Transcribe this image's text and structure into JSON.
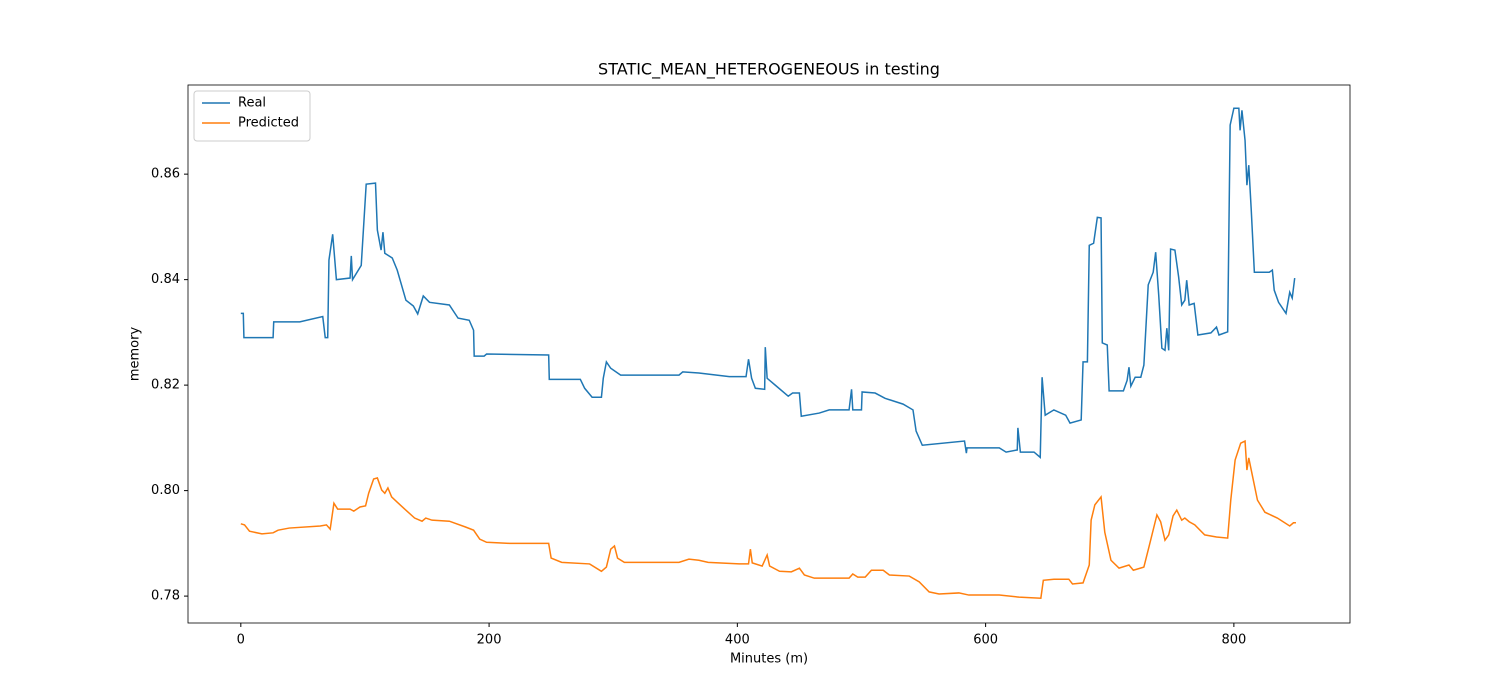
{
  "chart_data": {
    "type": "line",
    "title": "STATIC_MEAN_HETEROGENEOUS in testing",
    "x_label": "Minutes (m)",
    "y_label": "memory",
    "xlim": [
      -42.55,
      893.55
    ],
    "ylim": [
      0.7749,
      0.8769
    ],
    "xticks": [
      0,
      200,
      400,
      600,
      800
    ],
    "yticks": [
      0.78,
      {
        "value": 0.8,
        "label": "0.80"
      },
      0.82,
      0.84,
      0.86
    ],
    "legend": "upper left",
    "series": [
      {
        "name": "Real",
        "color": "#1f77b4",
        "x": [
          0,
          2,
          2.5,
          26,
          26.5,
          47.5,
          66,
          68,
          70,
          71,
          74,
          77,
          88,
          89,
          90,
          97,
          101,
          108.5,
          110,
          113,
          114.5,
          116,
          122,
          126,
          133,
          139,
          142.5,
          147,
          152,
          168,
          175,
          184,
          187.5,
          188,
          196,
          198,
          248,
          248.5,
          273.5,
          277,
          283,
          290.5,
          292,
          294.5,
          298,
          306,
          353,
          356,
          369,
          393.5,
          407,
          409,
          411.5,
          414.5,
          422,
          422.5,
          424,
          430.5,
          441,
          444.5,
          450,
          451.5,
          466,
          474,
          490,
          492,
          493,
          500,
          500.5,
          511,
          519,
          533.5,
          541.5,
          544,
          549,
          583,
          584.5,
          585,
          611,
          616.5,
          625.5,
          626,
          628,
          639,
          644,
          645.5,
          648,
          655,
          664.5,
          668,
          677,
          678.5,
          682,
          683.5,
          687,
          690,
          693,
          694,
          698,
          699.5,
          711,
          714,
          715.5,
          717,
          720.5,
          725,
          727.5,
          731,
          735,
          737,
          739.5,
          742,
          744.5,
          746,
          747.5,
          749,
          752.5,
          755.5,
          758,
          760.5,
          762,
          764,
          768,
          771,
          781.5,
          786,
          788,
          795,
          797,
          800,
          804,
          805,
          806.5,
          809,
          810.5,
          812,
          814,
          816.5,
          828.5,
          831,
          832.5,
          836,
          842,
          845,
          847,
          849
        ],
        "values": [
          0.8336,
          0.8336,
          0.829,
          0.829,
          0.832,
          0.832,
          0.833,
          0.829,
          0.829,
          0.8437,
          0.8486,
          0.84,
          0.8403,
          0.8445,
          0.84,
          0.8427,
          0.8581,
          0.8583,
          0.8494,
          0.8456,
          0.849,
          0.845,
          0.8441,
          0.8418,
          0.8361,
          0.835,
          0.8335,
          0.8369,
          0.8357,
          0.8352,
          0.8327,
          0.8323,
          0.8304,
          0.8255,
          0.8255,
          0.8259,
          0.8257,
          0.8211,
          0.8211,
          0.8194,
          0.8177,
          0.8177,
          0.8213,
          0.8244,
          0.8232,
          0.8219,
          0.8219,
          0.8225,
          0.8223,
          0.8216,
          0.8216,
          0.8249,
          0.8213,
          0.8194,
          0.8192,
          0.8272,
          0.8213,
          0.82,
          0.8179,
          0.8185,
          0.8185,
          0.8141,
          0.8147,
          0.8153,
          0.8153,
          0.8192,
          0.8153,
          0.8153,
          0.8187,
          0.8185,
          0.8175,
          0.8164,
          0.8153,
          0.8113,
          0.8086,
          0.8094,
          0.8071,
          0.8081,
          0.8081,
          0.8073,
          0.8077,
          0.8119,
          0.8073,
          0.8073,
          0.8063,
          0.8215,
          0.8143,
          0.8153,
          0.8143,
          0.8128,
          0.8134,
          0.8244,
          0.8244,
          0.8465,
          0.8469,
          0.8518,
          0.8517,
          0.828,
          0.8276,
          0.8189,
          0.8189,
          0.8209,
          0.8234,
          0.8198,
          0.8215,
          0.8215,
          0.8238,
          0.839,
          0.8414,
          0.8452,
          0.8369,
          0.827,
          0.8266,
          0.8308,
          0.8266,
          0.8458,
          0.8456,
          0.8405,
          0.8352,
          0.8361,
          0.8399,
          0.8352,
          0.8355,
          0.8295,
          0.8299,
          0.831,
          0.8295,
          0.8301,
          0.8693,
          0.8725,
          0.8725,
          0.8683,
          0.8721,
          0.8664,
          0.8579,
          0.8617,
          0.8532,
          0.8414,
          0.8414,
          0.8418,
          0.838,
          0.8357,
          0.8336,
          0.8376,
          0.8365,
          0.8403
        ]
      },
      {
        "name": "Predicted",
        "color": "#ff7f0e",
        "x": [
          0,
          3,
          7,
          17,
          26,
          30,
          39,
          64,
          69,
          72,
          75,
          78,
          88,
          91,
          96,
          100.5,
          103,
          107,
          110,
          113.5,
          116,
          118.5,
          121.5,
          126,
          132,
          140,
          146,
          149,
          154,
          168,
          181,
          187.5,
          192.5,
          198,
          216.5,
          248,
          250,
          258.5,
          281,
          290.5,
          294.5,
          298,
          301,
          303.5,
          309,
          353,
          361,
          369,
          376.5,
          401.5,
          409,
          410.5,
          412,
          420,
          424,
          426,
          434,
          443.5,
          450,
          454,
          462,
          490,
          493,
          497,
          503,
          508,
          517.5,
          522.5,
          538.5,
          546.5,
          554.5,
          562.5,
          578.5,
          586.5,
          611,
          627,
          644.5,
          646.5,
          655,
          667,
          670,
          678.5,
          683.5,
          685,
          688,
          693,
          696,
          701,
          707.5,
          715.5,
          719,
          727.5,
          732,
          738,
          741,
          744.5,
          747.5,
          751,
          754,
          758,
          760.5,
          764,
          768.5,
          776.5,
          786,
          795,
          797.5,
          801,
          805.5,
          809,
          810.5,
          812,
          814,
          819,
          825,
          835,
          845,
          848,
          850
        ],
        "values": [
          0.7937,
          0.7935,
          0.7923,
          0.7918,
          0.792,
          0.7925,
          0.7929,
          0.7933,
          0.7935,
          0.7927,
          0.7976,
          0.7965,
          0.7965,
          0.7961,
          0.7969,
          0.7971,
          0.7995,
          0.8022,
          0.8024,
          0.8001,
          0.7995,
          0.8005,
          0.7988,
          0.7978,
          0.7965,
          0.7948,
          0.7942,
          0.7948,
          0.7944,
          0.7942,
          0.7931,
          0.7925,
          0.7908,
          0.7902,
          0.79,
          0.79,
          0.7872,
          0.7864,
          0.7861,
          0.7847,
          0.7855,
          0.7889,
          0.7895,
          0.7872,
          0.7864,
          0.7864,
          0.787,
          0.7868,
          0.7864,
          0.7861,
          0.7861,
          0.7889,
          0.7863,
          0.7857,
          0.7878,
          0.7857,
          0.7847,
          0.7846,
          0.7853,
          0.784,
          0.7834,
          0.7834,
          0.7842,
          0.7836,
          0.7836,
          0.7849,
          0.7849,
          0.784,
          0.7838,
          0.7827,
          0.7808,
          0.7804,
          0.7806,
          0.7802,
          0.7802,
          0.7798,
          0.7796,
          0.783,
          0.7832,
          0.7832,
          0.7823,
          0.7825,
          0.7859,
          0.7944,
          0.7973,
          0.7988,
          0.7921,
          0.7868,
          0.7853,
          0.7859,
          0.7849,
          0.7855,
          0.7897,
          0.7954,
          0.7941,
          0.7906,
          0.7916,
          0.7952,
          0.7963,
          0.7944,
          0.7948,
          0.7941,
          0.7935,
          0.7916,
          0.7912,
          0.791,
          0.7982,
          0.8058,
          0.809,
          0.8094,
          0.8039,
          0.8062,
          0.8039,
          0.7982,
          0.7959,
          0.7948,
          0.7933,
          0.7939,
          0.7939
        ]
      }
    ]
  }
}
